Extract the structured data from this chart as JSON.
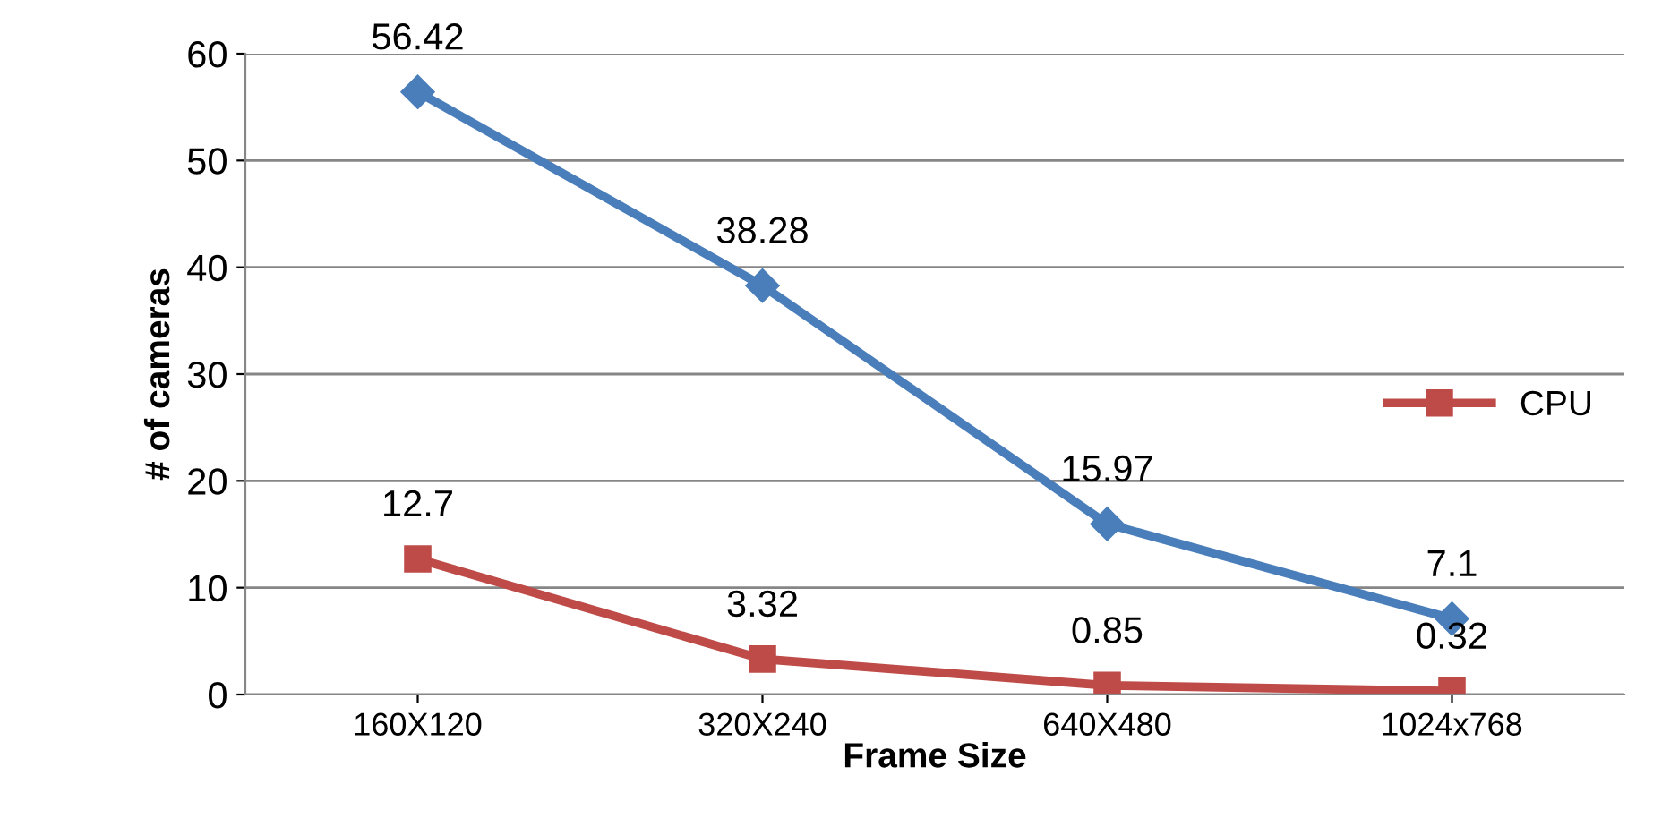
{
  "chart_data": {
    "type": "line",
    "xlabel": "Frame Size",
    "ylabel": "# of cameras",
    "categories": [
      "160X120",
      "320X240",
      "640X480",
      "1024x768"
    ],
    "series": [
      {
        "color": "#4a7ebb",
        "marker": "diamond",
        "values": [
          56.42,
          38.28,
          15.97,
          7.1
        ]
      },
      {
        "name": "CPU",
        "color": "#be4b48",
        "marker": "square",
        "values": [
          12.7,
          3.32,
          0.85,
          0.32
        ]
      }
    ],
    "ylim": [
      0,
      60
    ],
    "yticks": [
      0,
      10,
      20,
      30,
      40,
      50,
      60
    ],
    "grid": "y",
    "legend": "right",
    "data_labels": true
  }
}
